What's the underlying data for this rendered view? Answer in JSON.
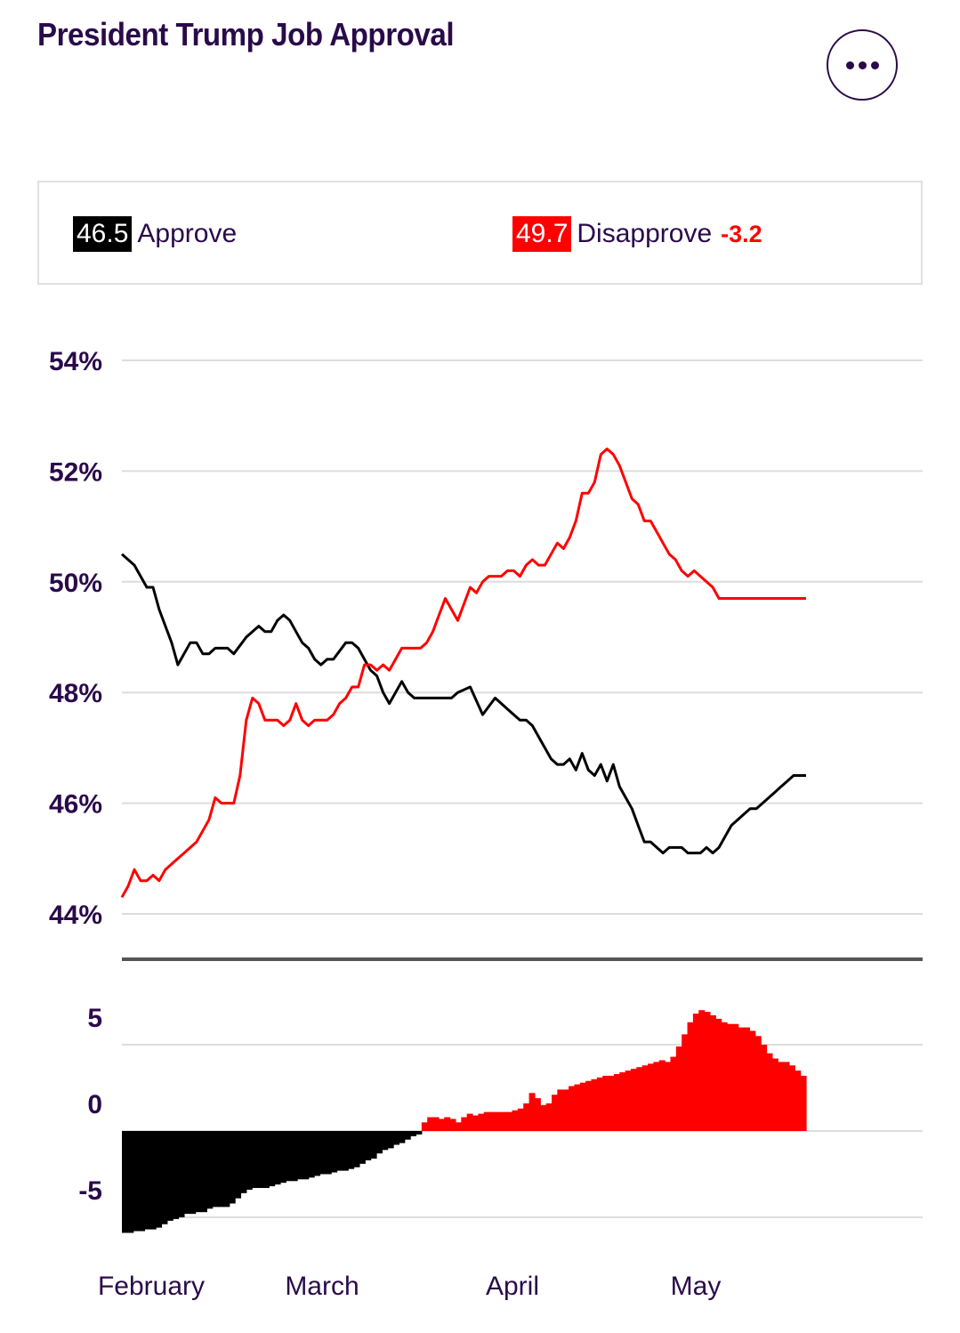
{
  "title": "President Trump Job Approval",
  "menu_icon": "more-horizontal-icon",
  "legend": {
    "approve_value": "46.5",
    "approve_label": "Approve",
    "disapprove_value": "49.7",
    "disapprove_label": "Disapprove",
    "spread": "-3.2"
  },
  "colors": {
    "approve": "#000000",
    "disapprove": "#ff0000",
    "text": "#2a0a4a",
    "grid": "#dddddd"
  },
  "chart_data": [
    {
      "type": "line",
      "title": "",
      "ylim": [
        44,
        54
      ],
      "yticks": [
        54,
        52,
        50,
        48,
        46,
        44
      ],
      "ytick_labels": [
        "54%",
        "52%",
        "50%",
        "48%",
        "46%",
        "44%"
      ],
      "x_tick_labels": [
        "February",
        "March",
        "April",
        "May"
      ],
      "legend_position": "top",
      "grid": true,
      "x_range": [
        0,
        110
      ],
      "series": [
        {
          "name": "Approve",
          "x": [
            0,
            2,
            4,
            5,
            6,
            7,
            8,
            9,
            10,
            11,
            12,
            13,
            14,
            15,
            16,
            17,
            18,
            20,
            22,
            23,
            24,
            25,
            26,
            27,
            28,
            29,
            30,
            31,
            32,
            33,
            34,
            36,
            37,
            38,
            39,
            40,
            41,
            42,
            43,
            44,
            45,
            46,
            47,
            48,
            50,
            51,
            52,
            53,
            54,
            56,
            58,
            60,
            62,
            63,
            64,
            65,
            66,
            67,
            68,
            69,
            70,
            71,
            72,
            73,
            74,
            75,
            76,
            77,
            78,
            79,
            80,
            81,
            82,
            83,
            84,
            85,
            86,
            87,
            88,
            89,
            90,
            91,
            92,
            93,
            94,
            95,
            96,
            97,
            98,
            99,
            100,
            101,
            102,
            103,
            104,
            105,
            106,
            107,
            108,
            109,
            110
          ],
          "y": [
            50.5,
            50.3,
            49.9,
            49.9,
            49.5,
            49.2,
            48.9,
            48.5,
            48.7,
            48.9,
            48.9,
            48.7,
            48.7,
            48.8,
            48.8,
            48.8,
            48.7,
            49.0,
            49.2,
            49.1,
            49.1,
            49.3,
            49.4,
            49.3,
            49.1,
            48.9,
            48.8,
            48.6,
            48.5,
            48.6,
            48.6,
            48.9,
            48.9,
            48.8,
            48.6,
            48.4,
            48.3,
            48.0,
            47.8,
            48.0,
            48.2,
            48.0,
            47.9,
            47.9,
            47.9,
            47.9,
            47.9,
            47.9,
            48.0,
            48.1,
            47.6,
            47.9,
            47.7,
            47.6,
            47.5,
            47.5,
            47.4,
            47.2,
            47.0,
            46.8,
            46.7,
            46.7,
            46.8,
            46.6,
            46.9,
            46.6,
            46.5,
            46.7,
            46.4,
            46.7,
            46.3,
            46.1,
            45.9,
            45.6,
            45.3,
            45.3,
            45.2,
            45.1,
            45.2,
            45.2,
            45.2,
            45.1,
            45.1,
            45.1,
            45.2,
            45.1,
            45.2,
            45.4,
            45.6,
            45.7,
            45.8,
            45.9,
            45.9,
            46.0,
            46.1,
            46.2,
            46.3,
            46.4,
            46.5,
            46.5,
            46.5
          ],
          "color": "#000000"
        },
        {
          "name": "Disapprove",
          "x": [
            0,
            1,
            2,
            3,
            4,
            5,
            6,
            7,
            8,
            9,
            10,
            11,
            12,
            13,
            14,
            15,
            16,
            17,
            18,
            19,
            20,
            21,
            22,
            23,
            24,
            25,
            26,
            27,
            28,
            29,
            30,
            31,
            32,
            33,
            34,
            35,
            36,
            37,
            38,
            39,
            40,
            41,
            42,
            43,
            44,
            45,
            46,
            47,
            48,
            49,
            50,
            51,
            52,
            53,
            54,
            55,
            56,
            57,
            58,
            59,
            60,
            61,
            62,
            63,
            64,
            65,
            66,
            67,
            68,
            69,
            70,
            71,
            72,
            73,
            74,
            75,
            76,
            77,
            78,
            79,
            80,
            81,
            82,
            83,
            84,
            85,
            86,
            87,
            88,
            89,
            90,
            91,
            92,
            93,
            94,
            95,
            96,
            97,
            98,
            99,
            100,
            101,
            102,
            103,
            104,
            105,
            106,
            107,
            108,
            109,
            110
          ],
          "y": [
            44.3,
            44.5,
            44.8,
            44.6,
            44.6,
            44.7,
            44.6,
            44.8,
            44.9,
            45.0,
            45.1,
            45.2,
            45.3,
            45.5,
            45.7,
            46.1,
            46.0,
            46.0,
            46.0,
            46.5,
            47.5,
            47.9,
            47.8,
            47.5,
            47.5,
            47.5,
            47.4,
            47.5,
            47.8,
            47.5,
            47.4,
            47.5,
            47.5,
            47.5,
            47.6,
            47.8,
            47.9,
            48.1,
            48.1,
            48.5,
            48.5,
            48.4,
            48.5,
            48.4,
            48.6,
            48.8,
            48.8,
            48.8,
            48.8,
            48.9,
            49.1,
            49.4,
            49.7,
            49.5,
            49.3,
            49.6,
            49.9,
            49.8,
            50.0,
            50.1,
            50.1,
            50.1,
            50.2,
            50.2,
            50.1,
            50.3,
            50.4,
            50.3,
            50.3,
            50.5,
            50.7,
            50.6,
            50.8,
            51.1,
            51.6,
            51.6,
            51.8,
            52.3,
            52.4,
            52.3,
            52.1,
            51.8,
            51.5,
            51.4,
            51.1,
            51.1,
            50.9,
            50.7,
            50.5,
            50.4,
            50.2,
            50.1,
            50.2,
            50.1,
            50.0,
            49.9,
            49.7,
            49.7,
            49.7,
            49.7,
            49.7,
            49.7,
            49.7,
            49.7,
            49.7,
            49.7,
            49.7,
            49.7,
            49.7,
            49.7,
            49.7
          ],
          "color": "#ff0000"
        }
      ]
    },
    {
      "type": "bar",
      "title": "",
      "ylim": [
        -7,
        7
      ],
      "yticks": [
        5,
        0,
        -5
      ],
      "ytick_labels": [
        "5",
        "0",
        "-5"
      ],
      "x_tick_labels": [
        "February",
        "March",
        "April",
        "May"
      ],
      "grid": true,
      "series": [
        {
          "name": "Spread",
          "values": [
            -5.9,
            -5.9,
            -5.8,
            -5.8,
            -5.7,
            -5.7,
            -5.6,
            -5.4,
            -5.2,
            -5.1,
            -5.0,
            -4.8,
            -4.8,
            -4.7,
            -4.7,
            -4.5,
            -4.4,
            -4.4,
            -4.4,
            -4.2,
            -3.9,
            -3.6,
            -3.4,
            -3.3,
            -3.3,
            -3.3,
            -3.2,
            -3.1,
            -3.0,
            -2.9,
            -2.9,
            -2.8,
            -2.8,
            -2.7,
            -2.6,
            -2.5,
            -2.5,
            -2.4,
            -2.3,
            -2.3,
            -2.2,
            -2.1,
            -1.9,
            -1.7,
            -1.6,
            -1.3,
            -1.1,
            -1.0,
            -0.8,
            -0.7,
            -0.5,
            -0.3,
            -0.2,
            0.5,
            0.8,
            0.8,
            0.7,
            0.8,
            0.7,
            0.5,
            0.8,
            1.0,
            0.9,
            1.0,
            1.1,
            1.1,
            1.1,
            1.1,
            1.1,
            1.2,
            1.3,
            1.6,
            2.2,
            1.9,
            1.5,
            1.6,
            2.1,
            2.4,
            2.4,
            2.6,
            2.7,
            2.8,
            2.9,
            3.0,
            3.1,
            3.2,
            3.2,
            3.3,
            3.4,
            3.5,
            3.6,
            3.7,
            3.8,
            3.9,
            4.0,
            4.1,
            4.0,
            4.3,
            4.9,
            5.6,
            6.3,
            6.8,
            7.0,
            6.9,
            6.7,
            6.5,
            6.3,
            6.2,
            6.2,
            6.0,
            6.0,
            5.8,
            5.5,
            5.0,
            4.5,
            4.2,
            4.0,
            4.0,
            3.8,
            3.5,
            3.2
          ],
          "colors_by_sign": {
            "positive": "#ff0000",
            "negative": "#000000"
          }
        }
      ]
    }
  ]
}
